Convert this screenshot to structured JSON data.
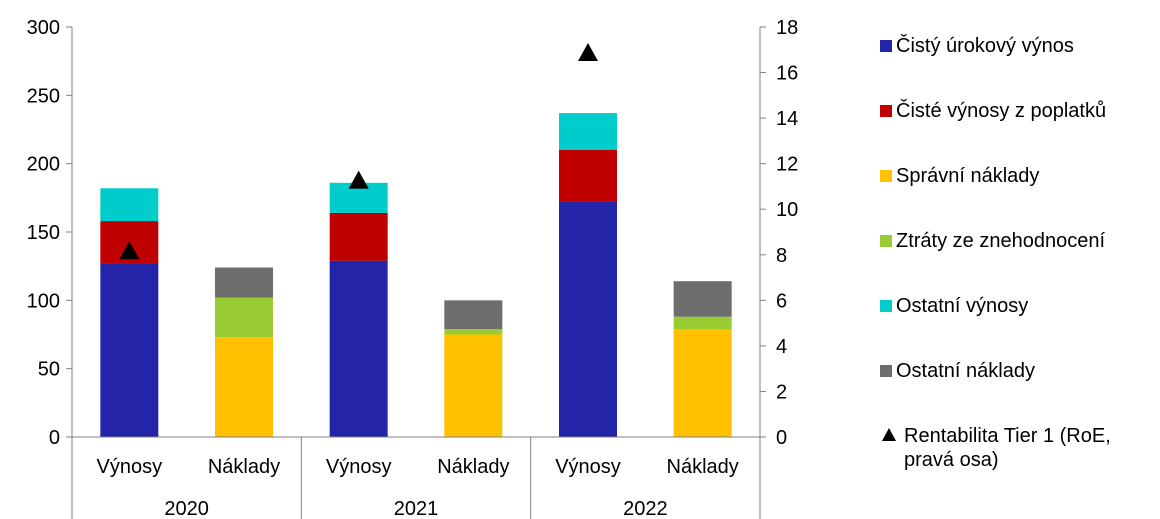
{
  "chart_data": {
    "type": "bar",
    "stacked": true,
    "groups": [
      "2020",
      "2021",
      "2022"
    ],
    "subcategories": [
      "Výnosy",
      "Náklady"
    ],
    "categories": [
      "Výnosy",
      "Náklady",
      "Výnosy",
      "Náklady",
      "Výnosy",
      "Náklady"
    ],
    "series": [
      {
        "name": "Čistý úrokový výnos",
        "color": "#2424A8",
        "values": [
          127,
          0,
          129,
          0,
          172,
          0
        ]
      },
      {
        "name": "Čisté výnosy z poplatků",
        "color": "#C00000",
        "values": [
          31,
          0,
          35,
          0,
          38,
          0
        ]
      },
      {
        "name": "Správní náklady",
        "color": "#FFC000",
        "values": [
          0,
          73,
          0,
          75,
          0,
          79
        ]
      },
      {
        "name": "Ztráty ze znehodnocení",
        "color": "#99CC33",
        "values": [
          0,
          29,
          0,
          4,
          0,
          9
        ]
      },
      {
        "name": "Ostatní výnosy",
        "color": "#00CCCC",
        "values": [
          24,
          0,
          22,
          0,
          27,
          0
        ]
      },
      {
        "name": "Ostatní náklady",
        "color": "#6E6E6E",
        "values": [
          0,
          22,
          0,
          21,
          0,
          26
        ]
      }
    ],
    "secondary_series": {
      "name": "Rentabilita Tier 1 (RoE, pravá osa)",
      "type": "scatter",
      "marker": "triangle",
      "color": "#000000",
      "axis": "right",
      "category_index": [
        0,
        2,
        4
      ],
      "values": [
        8.2,
        11.3,
        16.9
      ]
    },
    "ylim": [
      0,
      300
    ],
    "yticks": [
      "0",
      "50",
      "100",
      "150",
      "200",
      "250",
      "300"
    ],
    "y2lim": [
      0,
      18
    ],
    "y2ticks": [
      "0",
      "2",
      "4",
      "6",
      "8",
      "10",
      "12",
      "14",
      "16",
      "18"
    ],
    "grid": false,
    "legend_position": "right"
  }
}
